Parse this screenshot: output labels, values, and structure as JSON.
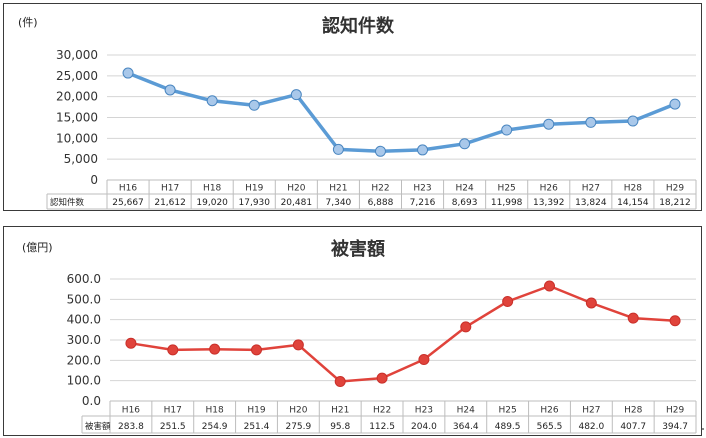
{
  "chart_data": [
    {
      "type": "line",
      "title": "認知件数",
      "unit": "(件)",
      "ylim": [
        0,
        30000
      ],
      "yticks": [
        "30,000",
        "25,000",
        "20,000",
        "15,000",
        "10,000",
        "5,000",
        "0"
      ],
      "categories": [
        "H16",
        "H17",
        "H18",
        "H19",
        "H20",
        "H21",
        "H22",
        "H23",
        "H24",
        "H25",
        "H26",
        "H27",
        "H28",
        "H29"
      ],
      "table_row_label": "認知件数",
      "values": [
        25667,
        21612,
        19020,
        17930,
        20481,
        7340,
        6888,
        7216,
        8693,
        11998,
        13392,
        13824,
        14154,
        18212
      ],
      "value_labels": [
        "25,667",
        "21,612",
        "19,020",
        "17,930",
        "20,481",
        "7,340",
        "6,888",
        "7,216",
        "8,693",
        "11,998",
        "13,392",
        "13,824",
        "14,154",
        "18,212"
      ],
      "grid": true,
      "legend": "none",
      "line_color": "#5b9bd5",
      "marker_fill": "#a9c8ea"
    },
    {
      "type": "line",
      "title": "被害額",
      "unit": "(億円)",
      "ylim": [
        0,
        600
      ],
      "yticks": [
        "600.0",
        "500.0",
        "400.0",
        "300.0",
        "200.0",
        "100.0",
        "0.0"
      ],
      "categories": [
        "H16",
        "H17",
        "H18",
        "H19",
        "H20",
        "H21",
        "H22",
        "H23",
        "H24",
        "H25",
        "H26",
        "H27",
        "H28",
        "H29"
      ],
      "table_row_label": "被害額",
      "values": [
        283.8,
        251.5,
        254.9,
        251.4,
        275.9,
        95.8,
        112.5,
        204.0,
        364.4,
        489.5,
        565.5,
        482.0,
        407.7,
        394.7
      ],
      "value_labels": [
        "283.8",
        "251.5",
        "254.9",
        "251.4",
        "275.9",
        "95.8",
        "112.5",
        "204.0",
        "364.4",
        "489.5",
        "565.5",
        "482.0",
        "407.7",
        "394.7"
      ],
      "grid": true,
      "legend": "none",
      "line_color": "#e0433b",
      "marker_fill": "#e0433b"
    }
  ]
}
